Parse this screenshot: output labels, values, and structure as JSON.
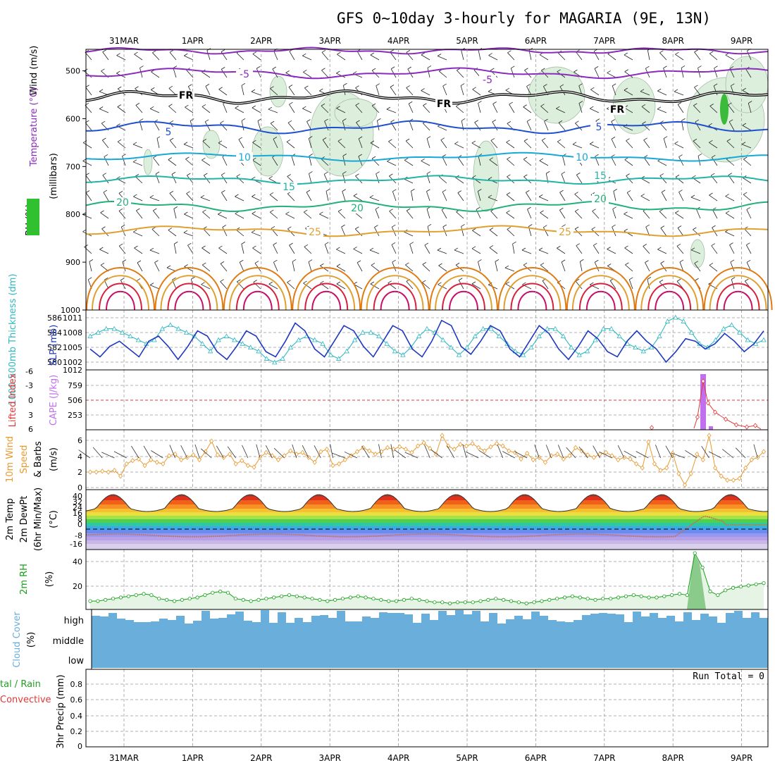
{
  "title": "GFS 0~10day 3-hourly for MAGARIA (9E, 13N)",
  "dates": [
    "31MAR",
    "1APR",
    "2APR",
    "3APR",
    "4APR",
    "5APR",
    "6APR",
    "7APR",
    "8APR",
    "9APR"
  ],
  "colors": {
    "purple": "#8a2bbd",
    "blue": "#1f4fd1",
    "cyan": "#16a8d8",
    "teal": "#20b5a8",
    "green": "#22b07a",
    "orange": "#e0a030",
    "darkorange": "#e07a10",
    "red": "#d8203a",
    "magenta": "#c8106a",
    "rh": "#dcefdc",
    "cloud": "#6aaedb",
    "cape": "#c070ee",
    "lifted": "#e03838",
    "wind": "#e89a30",
    "thick": "#30b8c0",
    "slp": "#1f38c0",
    "rh2m": "#18a018"
  },
  "panels": {
    "upper": {
      "ylabel_wind": "Wind (m/s)",
      "ylabel_temp": "Temperature (°C)",
      "ylabel_rh": "RH (%)",
      "ylabel_mb": "(millibars)",
      "yticks": [
        "500",
        "600",
        "700",
        "800",
        "900",
        "1000"
      ],
      "contour_labels": [
        {
          "t": "-5",
          "c": "purple"
        },
        {
          "t": "-5",
          "c": "purple"
        },
        {
          "t": "FR",
          "c": "black"
        },
        {
          "t": "FR",
          "c": "black"
        },
        {
          "t": "FR",
          "c": "black"
        },
        {
          "t": "5",
          "c": "blue"
        },
        {
          "t": "5",
          "c": "blue"
        },
        {
          "t": "10",
          "c": "cyan"
        },
        {
          "t": "10",
          "c": "cyan"
        },
        {
          "t": "15",
          "c": "teal"
        },
        {
          "t": "15",
          "c": "teal"
        },
        {
          "t": "20",
          "c": "green"
        },
        {
          "t": "20",
          "c": "green"
        },
        {
          "t": "20",
          "c": "green"
        },
        {
          "t": "25",
          "c": "orange"
        },
        {
          "t": "25",
          "c": "orange"
        }
      ]
    },
    "thickness": {
      "ylabel_left": "1000-500mb Thickness (dm)",
      "ylabel_right": "SLP (mb)",
      "left_ticks": [
        "586",
        "584",
        "582",
        "580"
      ],
      "right_ticks": [
        "1011",
        "1008",
        "1005",
        "1002"
      ]
    },
    "cape": {
      "ylabel_left": "Lifted Index",
      "ylabel_right": "CAPE (J/kg)",
      "left_ticks": [
        "-6",
        "-3",
        "0",
        "3",
        "6"
      ],
      "right_ticks": [
        "1012",
        "759",
        "506",
        "253"
      ]
    },
    "wind10m": {
      "ylabel": "10m Wind Speed & Barbs (m/s)",
      "yticks": [
        "6",
        "4",
        "2",
        "0"
      ],
      "ylabel_a": "10m Wind",
      "ylabel_b": "Speed",
      "ylabel_c": "& Barbs",
      "ylabel_d": "(m/s)"
    },
    "temp2m": {
      "ylabel_a": "2m Temp",
      "ylabel_b": "2m DewPt",
      "ylabel_c": "(6hr Min/Max)",
      "ylabel_d": "(°C)",
      "yticks": [
        "40",
        "32",
        "24",
        "16",
        "8",
        "0",
        "-8",
        "-16"
      ]
    },
    "rh2m": {
      "ylabel": "2m RH",
      "unit": "(%)",
      "yticks": [
        "40",
        "20"
      ]
    },
    "cloud": {
      "ylabel": "Cloud Cover",
      "unit": "(%)",
      "levels": [
        "high",
        "middle",
        "low"
      ]
    },
    "precip": {
      "ylabel_a": "tal / Rain",
      "ylabel_b": "Convective",
      "ylabel_c": "3hr Precip (mm)",
      "yticks": [
        "0.8",
        "0.6",
        "0.4",
        "0.2",
        "0"
      ],
      "run_total": "Run Total = 0"
    }
  },
  "chart_data": [
    {
      "type": "line",
      "name": "thickness_1000_500",
      "x_unit": "3-hourly step",
      "values": [
        583.5,
        584,
        584.5,
        584.5,
        584,
        583.5,
        583,
        582.5,
        583,
        584.5,
        585,
        584.5,
        584,
        583.5,
        582.5,
        581.5,
        583,
        583.5,
        583,
        582.5,
        582,
        581.5,
        580.5,
        580,
        580.5,
        582,
        583,
        583.5,
        583,
        582.5,
        581,
        580.5,
        581.5,
        583,
        584,
        584,
        583.5,
        582.5,
        581.5,
        581,
        582,
        583.5,
        584.5,
        584,
        583,
        582,
        581,
        582,
        583.5,
        584.5,
        584.5,
        583.5,
        582.5,
        581.5,
        581,
        582,
        583.5,
        584.5,
        584.5,
        583.5,
        582,
        581,
        581.5,
        583,
        584.5,
        584.5,
        583.5,
        582.5,
        582,
        581.5,
        582,
        583.5,
        585.5,
        586,
        585.5,
        584,
        582.5,
        582,
        583,
        584.5,
        585,
        584,
        583,
        582.5,
        583
      ]
    },
    {
      "type": "line",
      "name": "slp",
      "values": [
        1004.5,
        1003,
        1005,
        1006,
        1004.5,
        1003,
        1006,
        1007,
        1005,
        1002.5,
        1005,
        1008,
        1007,
        1004,
        1002.5,
        1005,
        1008,
        1007,
        1004,
        1003,
        1006,
        1009.5,
        1008,
        1004.5,
        1003,
        1006,
        1009,
        1008,
        1005,
        1003,
        1006,
        1009,
        1008,
        1004.5,
        1003,
        1006,
        1010,
        1009,
        1005,
        1003.5,
        1006,
        1009,
        1008,
        1004.5,
        1003,
        1006,
        1009,
        1007.5,
        1004.5,
        1002.5,
        1005,
        1008,
        1006.5,
        1004,
        1003,
        1006,
        1008,
        1006,
        1004.5,
        1002,
        1004,
        1006.5,
        1006,
        1004.5,
        1005.5,
        1007.5,
        1006,
        1004,
        1005.5,
        1008
      ]
    },
    {
      "type": "bar",
      "name": "cape",
      "values_note": "single spike near 8APR",
      "peak": 1012
    },
    {
      "type": "line",
      "name": "lifted_index",
      "values_note": "positive ~+6 except near 8APR dropping to ~-2"
    },
    {
      "type": "line",
      "name": "wind_speed_10m",
      "values": [
        2,
        2,
        2.1,
        2,
        2.2,
        1.5,
        3,
        3.4,
        3.6,
        2.8,
        3.5,
        3.2,
        3,
        4,
        4.2,
        3.5,
        3.8,
        4.1,
        3.5,
        4.5,
        5.8,
        4.1,
        3.8,
        4.2,
        3,
        3.4,
        2.8,
        2.6,
        3.8,
        4.4,
        4,
        3.5,
        4,
        4.6,
        4.2,
        4.4,
        3.8,
        3.2,
        4.5,
        4.8,
        2.8,
        3,
        3.5,
        4,
        4.5,
        5,
        4.6,
        4.2,
        4.5,
        5,
        4.8,
        5.1,
        4.8,
        4.4,
        5.2,
        5.6,
        4.9,
        4.2,
        6.5,
        5.2,
        4.8,
        5.4,
        5.2,
        5.5,
        5,
        4.6,
        5.1,
        5.5,
        5.2,
        4.6,
        4.4,
        3.6,
        4.3,
        3.5,
        3.8,
        3.2,
        4,
        4.2,
        3.6,
        4,
        5,
        4.6,
        4.1,
        3.8,
        4.2,
        4.4,
        4,
        3.5,
        3.8,
        3.6,
        3,
        2.5,
        5.7,
        3,
        2.2,
        2.5,
        4.3,
        1.8,
        0.4,
        1.8,
        4.2,
        3.5,
        6.5,
        2.5,
        1.5,
        1,
        1,
        1.2,
        2.5,
        3.5,
        3.8,
        4.5
      ]
    },
    {
      "type": "area",
      "name": "temp_2m",
      "unit": "°C",
      "values_note": "diurnal 25~40"
    },
    {
      "type": "line",
      "name": "dewpt_2m",
      "unit": "°C",
      "values_note": "around -10, rising to ~2 near 8APR"
    },
    {
      "type": "line",
      "name": "rh_2m",
      "unit": "%",
      "values": [
        7,
        7,
        8,
        9,
        10,
        11,
        12,
        13,
        12,
        9,
        8,
        7,
        8,
        9,
        10,
        12,
        14,
        15,
        14,
        9,
        8,
        7,
        8,
        9,
        10,
        11,
        12,
        11,
        10,
        9,
        8,
        7,
        8,
        9,
        10,
        11,
        10,
        9,
        8,
        7,
        7,
        8,
        9,
        8,
        7,
        6,
        6,
        5,
        6,
        6,
        6,
        7,
        8,
        9,
        8,
        7,
        6,
        5,
        6,
        7,
        8,
        9,
        10,
        11,
        10,
        9,
        8,
        9,
        9,
        10,
        11,
        12,
        11,
        10,
        10,
        11,
        12,
        13,
        12,
        47,
        35,
        15,
        12,
        16,
        18,
        19,
        20,
        21,
        22
      ]
    },
    {
      "type": "bar",
      "name": "high_cloud",
      "unit": "%",
      "values_note": "high cloud mostly 40~90"
    },
    {
      "type": "bar",
      "name": "precip_3hr",
      "unit": "mm",
      "ylim": [
        0,
        0.9
      ],
      "values_note": "all zero"
    }
  ]
}
